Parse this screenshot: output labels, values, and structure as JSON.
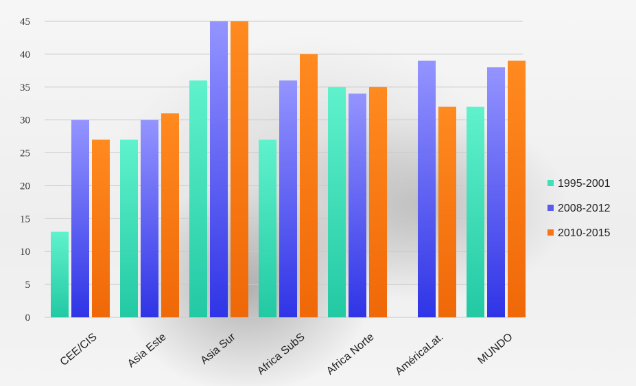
{
  "chart_data": {
    "type": "bar",
    "categories": [
      "CEE/CIS",
      "Asia Este",
      "Asia Sur",
      "Africa SubS",
      "Africa Norte",
      "AméricaLat.",
      "MUNDO"
    ],
    "series": [
      {
        "name": "1995-2001",
        "color": "#3fe0b8",
        "values": [
          13,
          27,
          36,
          27,
          35,
          null,
          32
        ]
      },
      {
        "name": "2008-2012",
        "color": "#5a5af0",
        "values": [
          30,
          30,
          45,
          36,
          34,
          39,
          38
        ]
      },
      {
        "name": "2010-2015",
        "color": "#f97316",
        "values": [
          27,
          31,
          45,
          40,
          35,
          32,
          39
        ]
      }
    ],
    "ylim": [
      0,
      45
    ],
    "yticks": [
      0,
      5,
      10,
      15,
      20,
      25,
      30,
      35,
      40,
      45
    ],
    "grid": true,
    "legend_position": "right",
    "title": "",
    "xlabel": "",
    "ylabel": ""
  }
}
